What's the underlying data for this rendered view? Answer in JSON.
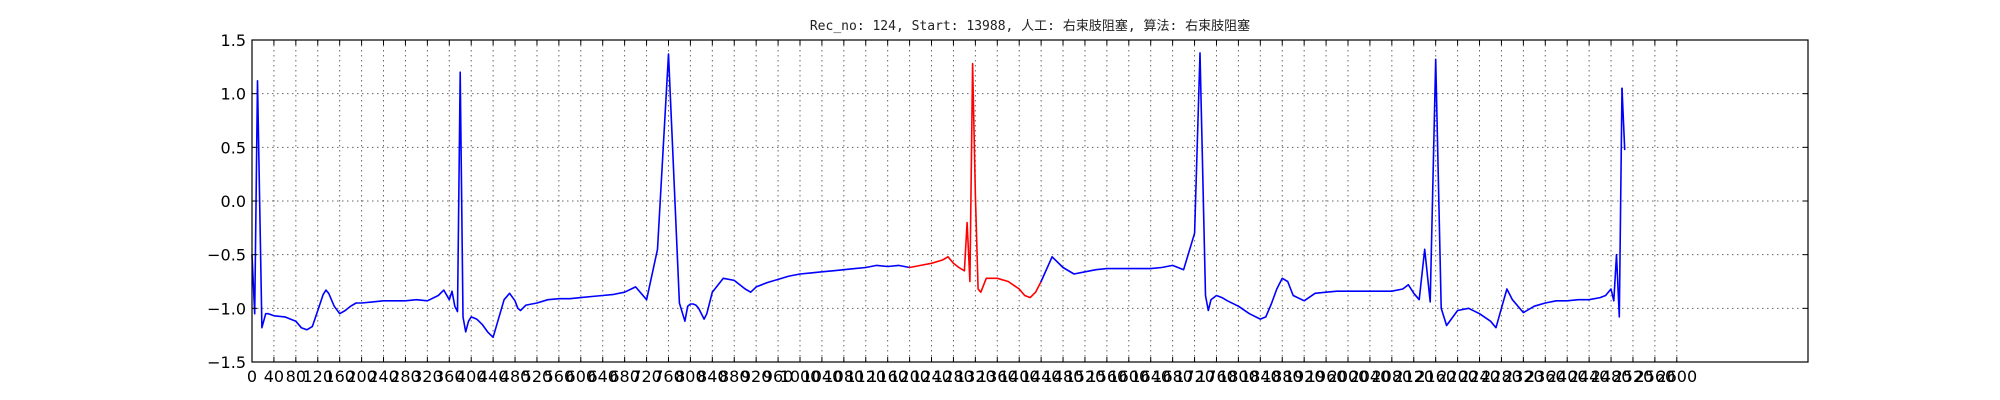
{
  "chart_data": {
    "type": "line",
    "title": "Rec_no: 124, Start: 13988, 人工: 右束肢阻塞, 算法: 右束肢阻塞",
    "xlabel": "",
    "ylabel": "",
    "xlim": [
      0,
      2600
    ],
    "ylim": [
      -1.5,
      1.5
    ],
    "grid": true,
    "x_tick_step": 40,
    "y_ticks": [
      -1.5,
      -1.0,
      -0.5,
      0.0,
      0.5,
      1.0,
      1.5
    ],
    "y_tick_labels": [
      "−1.5",
      "−1.0",
      "−0.5",
      "0.0",
      "0.5",
      "1.0",
      "1.5"
    ],
    "x_tick_labels": [
      "0",
      "40",
      "80",
      "120",
      "160",
      "200",
      "240",
      "280",
      "320",
      "360",
      "400",
      "440",
      "480",
      "520",
      "560",
      "600",
      "640",
      "680",
      "720",
      "760",
      "800",
      "840",
      "880",
      "920",
      "960",
      "1000",
      "1040",
      "1080",
      "1120",
      "1160",
      "1200",
      "1240",
      "1280",
      "1320",
      "1360",
      "1400",
      "1440",
      "1480",
      "1520",
      "1560",
      "1600",
      "1640",
      "1680",
      "1720",
      "1760",
      "1800",
      "1840",
      "1880",
      "1920",
      "1960",
      "2000",
      "2040",
      "2080",
      "2120",
      "2160",
      "2200",
      "2240",
      "2280",
      "2320",
      "2360",
      "2400",
      "2440",
      "2480",
      "2520",
      "2560",
      "2600"
    ],
    "series": [
      {
        "color": "#0000ff",
        "x": [
          0,
          5,
          10,
          18,
          25,
          30,
          35,
          40,
          60,
          80,
          90,
          100,
          110,
          120,
          130,
          135,
          140,
          150,
          160,
          170,
          180,
          190,
          200,
          220,
          240,
          260,
          280,
          300,
          320,
          340,
          350,
          360,
          365,
          370,
          375,
          380,
          385,
          390,
          395,
          400,
          410,
          420,
          430,
          440,
          460,
          470,
          480,
          485,
          490,
          500,
          520,
          540,
          560,
          580,
          600,
          620,
          640,
          660,
          680,
          700,
          720,
          740,
          760,
          780,
          790,
          795,
          800,
          805,
          810,
          815,
          820,
          825,
          830,
          840,
          860,
          880,
          900,
          910,
          920,
          940,
          960,
          980,
          1000,
          1020,
          1040,
          1060,
          1080,
          1100,
          1120,
          1140,
          1160,
          1180,
          1200
        ],
        "y": [
          -0.5,
          -1.05,
          1.12,
          -1.18,
          -1.05,
          -1.05,
          -1.06,
          -1.07,
          -1.08,
          -1.12,
          -1.18,
          -1.2,
          -1.17,
          -1.02,
          -0.87,
          -0.83,
          -0.86,
          -0.98,
          -1.05,
          -1.02,
          -0.98,
          -0.95,
          -0.95,
          -0.94,
          -0.93,
          -0.93,
          -0.93,
          -0.92,
          -0.93,
          -0.88,
          -0.83,
          -0.92,
          -0.84,
          -0.98,
          -1.03,
          1.2,
          -1.08,
          -1.22,
          -1.12,
          -1.08,
          -1.1,
          -1.15,
          -1.22,
          -1.27,
          -0.92,
          -0.86,
          -0.93,
          -1.0,
          -1.02,
          -0.97,
          -0.95,
          -0.92,
          -0.91,
          -0.91,
          -0.9,
          -0.89,
          -0.88,
          -0.87,
          -0.85,
          -0.8,
          -0.92,
          -0.45,
          1.37,
          -0.95,
          -1.12,
          -0.98,
          -0.96,
          -0.96,
          -0.97,
          -1.0,
          -1.05,
          -1.1,
          -1.05,
          -0.85,
          -0.72,
          -0.74,
          -0.82,
          -0.85,
          -0.8,
          -0.76,
          -0.73,
          -0.7,
          -0.68,
          -0.67,
          -0.66,
          -0.65,
          -0.64,
          -0.63,
          -0.62,
          -0.6,
          -0.61,
          -0.6,
          -0.62
        ]
      },
      {
        "color": "#ff0000",
        "x": [
          1200,
          1220,
          1240,
          1260,
          1270,
          1280,
          1290,
          1300,
          1305,
          1310,
          1315,
          1320,
          1325,
          1330,
          1340,
          1360,
          1380,
          1400,
          1410,
          1420,
          1430,
          1440
        ],
        "y": [
          -0.62,
          -0.6,
          -0.58,
          -0.55,
          -0.52,
          -0.58,
          -0.62,
          -0.65,
          -0.2,
          -0.75,
          1.28,
          0.05,
          -0.82,
          -0.85,
          -0.72,
          -0.72,
          -0.75,
          -0.82,
          -0.88,
          -0.9,
          -0.85,
          -0.75
        ]
      },
      {
        "color": "#0000ff",
        "x": [
          1440,
          1460,
          1480,
          1500,
          1520,
          1540,
          1560,
          1580,
          1600,
          1620,
          1640,
          1660,
          1680,
          1700,
          1720,
          1730,
          1740,
          1745,
          1750,
          1755,
          1760,
          1770,
          1780,
          1800,
          1820,
          1840,
          1850,
          1860,
          1870,
          1880,
          1890,
          1900,
          1920,
          1940,
          1960,
          1980,
          2000,
          2020,
          2040,
          2060,
          2080,
          2100,
          2110,
          2120,
          2130,
          2140,
          2150,
          2160,
          2170,
          2180,
          2200,
          2220,
          2240,
          2260,
          2270,
          2280,
          2290,
          2300,
          2320,
          2340,
          2360,
          2380,
          2400,
          2420,
          2440,
          2460,
          2470,
          2480,
          2485,
          2490,
          2495,
          2500
        ],
        "y": [
          -0.75,
          -0.52,
          -0.62,
          -0.68,
          -0.66,
          -0.64,
          -0.63,
          -0.63,
          -0.63,
          -0.63,
          -0.63,
          -0.62,
          -0.6,
          -0.64,
          -0.3,
          1.38,
          -0.88,
          -1.02,
          -0.92,
          -0.9,
          -0.88,
          -0.9,
          -0.93,
          -0.98,
          -1.05,
          -1.1,
          -1.08,
          -0.96,
          -0.82,
          -0.72,
          -0.75,
          -0.88,
          -0.93,
          -0.86,
          -0.85,
          -0.84,
          -0.84,
          -0.84,
          -0.84,
          -0.84,
          -0.84,
          -0.82,
          -0.78,
          -0.86,
          -0.92,
          -0.45,
          -0.94,
          1.32,
          -1.0,
          -1.16,
          -1.02,
          -1.0,
          -1.05,
          -1.12,
          -1.18,
          -1.0,
          -0.82,
          -0.92,
          -1.04,
          -0.98,
          -0.95,
          -0.93,
          -0.93,
          -0.92,
          -0.92,
          -0.9,
          -0.88,
          -0.82,
          -0.93,
          -0.5,
          -1.08,
          1.05
        ]
      },
      {
        "color": "#0000ff",
        "x": [
          2500,
          2505
        ],
        "y": [
          1.05,
          0.48
        ]
      }
    ]
  }
}
